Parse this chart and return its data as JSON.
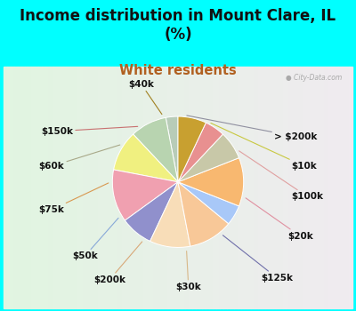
{
  "title": "Income distribution in Mount Clare, IL\n(%)",
  "subtitle": "White residents",
  "bg_outer": "#00FFFF",
  "bg_inner_color": "#d4eee4",
  "labels": [
    "> $200k",
    "$10k",
    "$100k",
    "$20k",
    "$125k",
    "$30k",
    "$200k",
    "$50k",
    "$75k",
    "$60k",
    "$150k",
    "$40k"
  ],
  "values": [
    3,
    9,
    10,
    13,
    8,
    10,
    11,
    5,
    12,
    7,
    5,
    7
  ],
  "colors": [
    "#b8ccb8",
    "#b8d4b0",
    "#f0f080",
    "#f0a0b0",
    "#9090cc",
    "#f8ddb8",
    "#f8c898",
    "#a8c8f8",
    "#f8b870",
    "#c8c8a8",
    "#e89090",
    "#c8a030"
  ],
  "line_colors": [
    "#9090a0",
    "#c8c840",
    "#e0a0a0",
    "#e090a0",
    "#7070aa",
    "#d8b888",
    "#d8a878",
    "#88a8d8",
    "#d89850",
    "#a8a888",
    "#c87070",
    "#a08020"
  ],
  "startangle": 90,
  "title_fontsize": 12,
  "subtitle_fontsize": 10.5,
  "label_fontsize": 7.5
}
